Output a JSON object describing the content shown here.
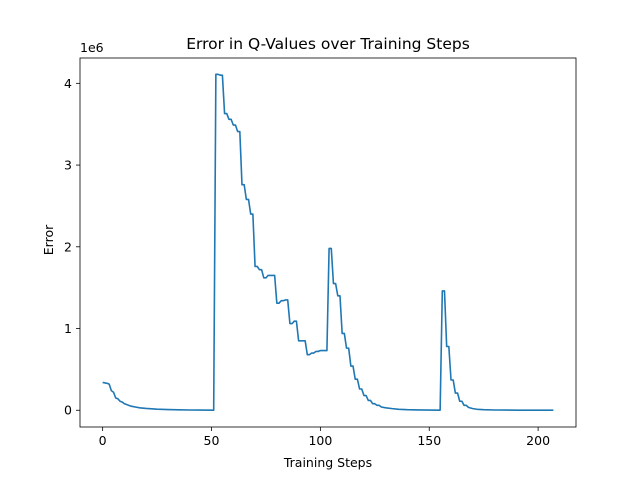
{
  "chart_data": {
    "type": "line",
    "title": "Error in Q-Values over Training Steps",
    "xlabel": "Training Steps",
    "ylabel": "Error",
    "offset_label": "1e6",
    "xlim": [
      -10.4,
      217.4
    ],
    "ylim": [
      -0.205,
      4.31
    ],
    "xticks": [
      0,
      50,
      100,
      150,
      200
    ],
    "yticks": [
      0,
      1,
      2,
      3,
      4
    ],
    "grid": false,
    "legend": "none",
    "line_color": "#1f77b4",
    "series": [
      {
        "x": [
          0,
          2,
          3,
          4,
          5,
          6,
          7,
          8,
          9,
          10,
          11,
          12,
          13,
          14,
          15,
          17,
          20,
          25,
          30,
          35,
          40,
          45,
          51,
          52,
          53,
          54,
          55,
          56,
          57,
          58,
          59,
          60,
          61,
          62,
          63,
          64,
          65,
          66,
          67,
          68,
          69,
          70,
          71,
          72,
          73,
          74,
          75,
          76,
          77,
          78,
          79,
          80,
          81,
          82,
          83,
          84,
          85,
          86,
          87,
          88,
          89,
          90,
          91,
          92,
          93,
          94,
          95,
          96,
          97,
          98,
          99,
          100,
          101,
          102,
          103,
          104,
          105,
          106,
          107,
          108,
          109,
          110,
          111,
          112,
          113,
          114,
          115,
          116,
          117,
          118,
          119,
          120,
          121,
          122,
          123,
          124,
          125,
          126,
          127,
          128,
          130,
          133,
          136,
          140,
          145,
          150,
          155,
          156,
          157,
          158,
          159,
          160,
          161,
          162,
          163,
          164,
          165,
          166,
          167,
          168,
          170,
          172,
          175,
          180,
          190,
          200,
          207
        ],
        "y": [
          0.34,
          0.33,
          0.32,
          0.24,
          0.22,
          0.15,
          0.14,
          0.11,
          0.1,
          0.08,
          0.07,
          0.06,
          0.05,
          0.045,
          0.04,
          0.03,
          0.022,
          0.013,
          0.008,
          0.005,
          0.003,
          0.002,
          0.001,
          4.11,
          4.11,
          4.1,
          4.1,
          3.63,
          3.63,
          3.56,
          3.56,
          3.49,
          3.49,
          3.41,
          3.41,
          2.76,
          2.76,
          2.58,
          2.58,
          2.4,
          2.4,
          1.76,
          1.76,
          1.72,
          1.72,
          1.62,
          1.62,
          1.65,
          1.65,
          1.65,
          1.65,
          1.31,
          1.31,
          1.34,
          1.34,
          1.35,
          1.35,
          1.06,
          1.06,
          1.09,
          1.09,
          0.85,
          0.85,
          0.85,
          0.85,
          0.68,
          0.68,
          0.7,
          0.7,
          0.72,
          0.72,
          0.73,
          0.73,
          0.73,
          0.73,
          1.98,
          1.98,
          1.55,
          1.55,
          1.4,
          1.4,
          0.94,
          0.94,
          0.76,
          0.76,
          0.54,
          0.54,
          0.38,
          0.38,
          0.26,
          0.26,
          0.18,
          0.18,
          0.12,
          0.12,
          0.08,
          0.08,
          0.06,
          0.06,
          0.04,
          0.03,
          0.02,
          0.012,
          0.007,
          0.004,
          0.002,
          0.001,
          1.46,
          1.46,
          0.78,
          0.78,
          0.37,
          0.37,
          0.21,
          0.21,
          0.11,
          0.11,
          0.06,
          0.06,
          0.035,
          0.02,
          0.012,
          0.007,
          0.003,
          0.001,
          0.0005,
          0.0003
        ]
      }
    ]
  }
}
